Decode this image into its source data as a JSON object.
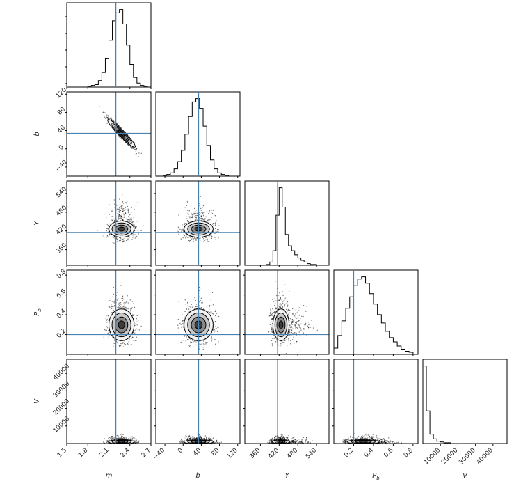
{
  "chart_data": {
    "type": "scatter",
    "subtype": "corner-plot",
    "grid": false,
    "truth_line_color": "#4682b4",
    "parameters": [
      {
        "key": "m",
        "label": "m",
        "range": [
          1.5,
          2.7
        ],
        "ticks": [
          1.5,
          1.8,
          2.1,
          2.4,
          2.7
        ],
        "tick_labels": [
          "1.5",
          "1.8",
          "2.1",
          "2.4",
          "2.7"
        ],
        "truth": 2.2,
        "mode": 2.28,
        "sd": 0.09,
        "skew": 0
      },
      {
        "key": "b",
        "label": "b",
        "range": [
          -60,
          125
        ],
        "ticks": [
          -40,
          0,
          40,
          80,
          120
        ],
        "tick_labels": [
          "−40",
          "0",
          "40",
          "80",
          "120"
        ],
        "truth": 34,
        "mode": 34,
        "sd": 16,
        "skew": 0
      },
      {
        "key": "Y",
        "label": "Y",
        "range": [
          310,
          580
        ],
        "ticks": [
          360,
          420,
          480,
          540
        ],
        "tick_labels": [
          "360",
          "420",
          "480",
          "540"
        ],
        "truth": 415,
        "mode": 420,
        "sd": 13,
        "skew": 40
      },
      {
        "key": "Pb",
        "label": "P_b",
        "range": [
          0.0,
          0.85
        ],
        "ticks": [
          0.2,
          0.4,
          0.6,
          0.8
        ],
        "tick_labels": [
          "0.2",
          "0.4",
          "0.6",
          "0.8"
        ],
        "truth": 0.2,
        "mode": 0.28,
        "sd": 0.08,
        "skew": 0.12
      },
      {
        "key": "V",
        "label": "V",
        "range": [
          0,
          48000
        ],
        "ticks": [
          10000,
          20000,
          30000,
          40000
        ],
        "tick_labels": [
          "10000",
          "20000",
          "30000",
          "40000"
        ],
        "truth": null,
        "mode": 700,
        "sd": 600,
        "skew": 1500
      }
    ],
    "pairs": [
      {
        "x": "m",
        "y": "b",
        "correlation": -0.95
      },
      {
        "x": "m",
        "y": "Y",
        "correlation": 0.0
      },
      {
        "x": "b",
        "y": "Y",
        "correlation": 0.0
      },
      {
        "x": "m",
        "y": "Pb",
        "correlation": 0.0
      },
      {
        "x": "b",
        "y": "Pb",
        "correlation": 0.0
      },
      {
        "x": "Y",
        "y": "Pb",
        "correlation": 0.0
      },
      {
        "x": "m",
        "y": "V",
        "correlation": 0.0
      },
      {
        "x": "b",
        "y": "V",
        "correlation": 0.0
      },
      {
        "x": "Y",
        "y": "V",
        "correlation": 0.0
      },
      {
        "x": "Pb",
        "y": "V",
        "correlation": 0.0
      }
    ],
    "histograms": {
      "m": {
        "bins": [
          1.5,
          1.55,
          1.6,
          1.65,
          1.7,
          1.75,
          1.8,
          1.85,
          1.9,
          1.95,
          2.0,
          2.05,
          2.1,
          2.15,
          2.2,
          2.25,
          2.3,
          2.35,
          2.4,
          2.45,
          2.5,
          2.55,
          2.6,
          2.65,
          2.7
        ],
        "counts": [
          0,
          0,
          0,
          0,
          0,
          0,
          1,
          2,
          3,
          8,
          18,
          35,
          58,
          82,
          92,
          96,
          78,
          52,
          28,
          12,
          5,
          2,
          1,
          0
        ]
      },
      "b": {
        "bins": [
          -60,
          -52,
          -44,
          -36,
          -28,
          -20,
          -12,
          -4,
          4,
          12,
          20,
          28,
          36,
          44,
          52,
          60,
          68,
          76,
          84,
          92,
          100,
          108,
          116,
          124
        ],
        "counts": [
          0,
          0,
          1,
          2,
          4,
          9,
          18,
          32,
          52,
          74,
          92,
          96,
          84,
          62,
          38,
          20,
          9,
          4,
          2,
          1,
          0,
          0,
          0
        ]
      },
      "Y": {
        "bins": [
          310,
          320,
          330,
          340,
          350,
          360,
          370,
          380,
          390,
          400,
          410,
          420,
          430,
          440,
          450,
          460,
          470,
          480,
          490,
          500,
          510,
          520,
          530,
          540,
          550,
          560,
          570,
          580
        ],
        "counts": [
          0,
          0,
          0,
          0,
          0,
          0,
          0,
          1,
          4,
          18,
          62,
          96,
          72,
          38,
          24,
          18,
          13,
          9,
          6,
          4,
          2,
          1,
          1,
          0,
          0,
          0,
          0
        ]
      },
      "Pb": {
        "bins": [
          0.0,
          0.04,
          0.08,
          0.12,
          0.16,
          0.2,
          0.24,
          0.28,
          0.32,
          0.36,
          0.4,
          0.44,
          0.48,
          0.52,
          0.56,
          0.6,
          0.64,
          0.68,
          0.72,
          0.76,
          0.8
        ],
        "counts": [
          6,
          18,
          32,
          44,
          55,
          66,
          72,
          74,
          68,
          58,
          48,
          38,
          30,
          22,
          16,
          12,
          8,
          5,
          3,
          2
        ]
      },
      "V": {
        "bins": [
          0,
          2000,
          4000,
          6000,
          8000,
          10000,
          12000,
          14000,
          16000,
          18000,
          20000,
          22000,
          24000,
          26000,
          28000,
          30000,
          32000,
          34000,
          36000,
          38000,
          40000,
          42000,
          44000,
          46000,
          48000
        ],
        "counts": [
          100,
          42,
          12,
          6,
          3,
          2,
          1,
          1,
          0,
          0,
          0,
          0,
          0,
          0,
          0,
          0,
          0,
          0,
          0,
          0,
          0,
          0,
          0,
          0
        ]
      }
    }
  }
}
